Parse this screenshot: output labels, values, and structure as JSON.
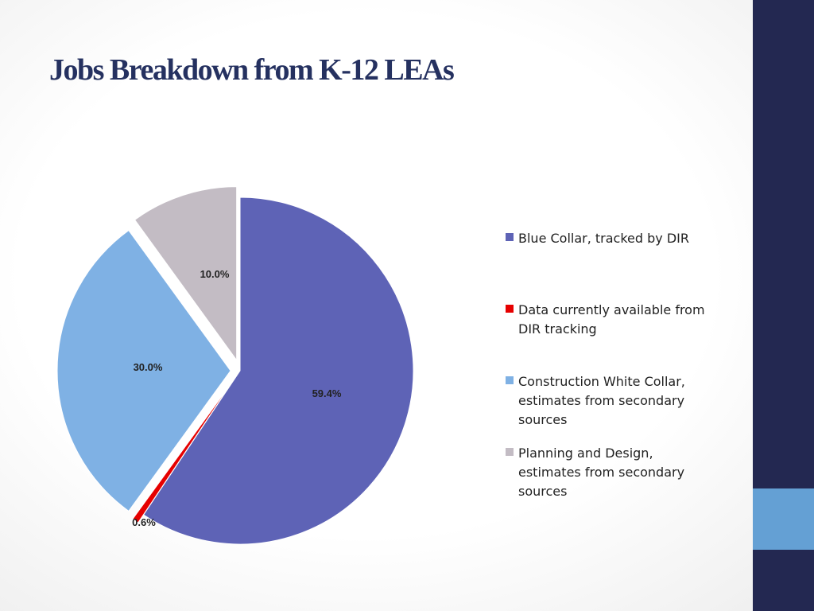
{
  "slide": {
    "title": "Jobs Breakdown from K-12 LEAs",
    "sidebar_color": "#232851",
    "sidebar_accent_color": "#64a0d4",
    "title_color": "#253160"
  },
  "chart_data": {
    "type": "pie",
    "title": "",
    "legend_position": "right",
    "slices": [
      {
        "name": "Blue Collar, tracked by DIR",
        "value": 59.4,
        "label": "59.4%",
        "color": "#5e63b6"
      },
      {
        "name": "Data currently available from DIR tracking",
        "value": 0.6,
        "label": "0.6%",
        "color": "#e60000"
      },
      {
        "name": "Construction White Collar, estimates from secondary sources",
        "value": 30.0,
        "label": "30.0%",
        "color": "#7fb1e4"
      },
      {
        "name": "Planning and Design, estimates from secondary sources",
        "value": 10.0,
        "label": "10.0%",
        "color": "#c3bcc4"
      }
    ]
  }
}
